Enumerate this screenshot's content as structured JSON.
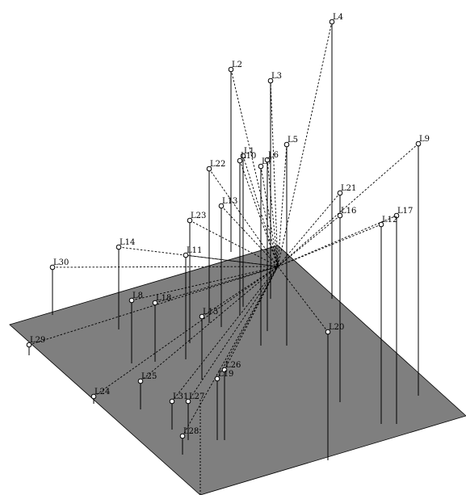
{
  "diagram": {
    "plane_color": "#7f7f7f",
    "line_color": "#000000",
    "nodes": [
      {
        "label": "L4"
      },
      {
        "label": "L2"
      },
      {
        "label": "L3"
      },
      {
        "label": "L9"
      },
      {
        "label": "L5"
      },
      {
        "label": "L1"
      },
      {
        "label": "L10"
      },
      {
        "label": "L6"
      },
      {
        "label": "L7"
      },
      {
        "label": "L22"
      },
      {
        "label": "L21"
      },
      {
        "label": "L13"
      },
      {
        "label": "L16"
      },
      {
        "label": "L17"
      },
      {
        "label": "L12"
      },
      {
        "label": "L23"
      },
      {
        "label": "L14"
      },
      {
        "label": "L11"
      },
      {
        "label": "L30"
      },
      {
        "label": "L8"
      },
      {
        "label": "L18"
      },
      {
        "label": "L15"
      },
      {
        "label": "L20"
      },
      {
        "label": "L29"
      },
      {
        "label": "L26"
      },
      {
        "label": "L19"
      },
      {
        "label": "L25"
      },
      {
        "label": "L24"
      },
      {
        "label": "L31"
      },
      {
        "label": "L27"
      },
      {
        "label": "L28"
      }
    ]
  }
}
